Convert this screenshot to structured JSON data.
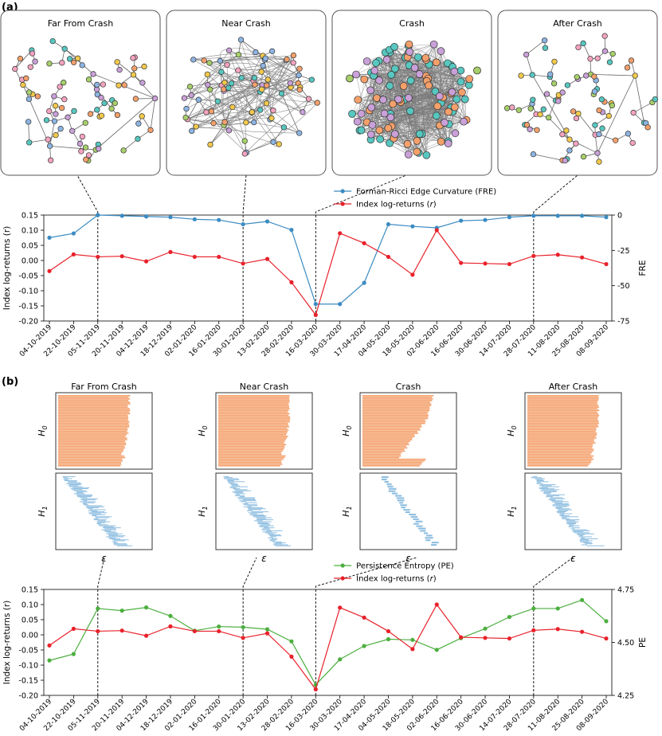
{
  "panel_a": {
    "label": "(a)",
    "snapshots": [
      "Far From Crash",
      "Near Crash",
      "Crash",
      "After Crash"
    ]
  },
  "panel_b": {
    "label": "(b)",
    "snapshots": [
      "Far From Crash",
      "Near Crash",
      "Crash",
      "After Crash"
    ],
    "h0_label": "H0",
    "h1_label": "H1",
    "eps_label": "ε"
  },
  "colors": {
    "fre": "#3b8bc2",
    "returns": "#e8212a",
    "pe": "#4caf3f",
    "barcode_h0": "#f4a06b",
    "barcode_h1": "#8dbde0",
    "edge": "#888888"
  },
  "network_node_colors": [
    "#57c7c0",
    "#f4a06b",
    "#c9a0d8",
    "#a7cf6a",
    "#f2c94c",
    "#8db4e2",
    "#f4a3c1"
  ],
  "chart_data": [
    {
      "type": "line",
      "dual_axis": true,
      "x": [
        "04-10-2019",
        "22-10-2019",
        "05-11-2019",
        "20-11-2019",
        "04-12-2019",
        "18-12-2019",
        "02-01-2020",
        "16-01-2020",
        "30-01-2020",
        "13-02-2020",
        "28-02-2020",
        "16-03-2020",
        "30-03-2020",
        "17-04-2020",
        "04-05-2020",
        "18-05-2020",
        "02-06-2020",
        "16-06-2020",
        "30-06-2020",
        "14-07-2020",
        "28-07-2020",
        "11-08-2020",
        "25-08-2020",
        "08-09-2020"
      ],
      "series": [
        {
          "name": "Forman-Ricci Edge Curvature (FRE)",
          "axis": "right",
          "values": [
            -16,
            -13,
            0,
            -0.5,
            -1,
            -1.5,
            -3,
            -3.5,
            -6.5,
            -4.5,
            -10.5,
            -63,
            -63,
            -48,
            -6.5,
            -8,
            -9,
            -4,
            -3.5,
            -1.5,
            -0.5,
            -0.5,
            -0.5,
            -1.5
          ]
        },
        {
          "name": "Index log-returns (r)",
          "axis": "left",
          "values": [
            -0.035,
            0.02,
            0.012,
            0.014,
            -0.003,
            0.028,
            0.012,
            0.012,
            -0.01,
            0.005,
            -0.072,
            -0.18,
            0.09,
            0.057,
            0.012,
            -0.047,
            0.1,
            -0.008,
            -0.01,
            -0.012,
            0.015,
            0.019,
            0.01,
            -0.012
          ]
        }
      ],
      "ylabel_left": "Index log-returns (r)",
      "ylabel_right": "FRE",
      "ylim_left": [
        -0.2,
        0.15
      ],
      "ylim_right": [
        -75,
        0
      ],
      "yticks_left": [
        "0.15",
        "0.10",
        "0.05",
        "0.00",
        "-0.05",
        "-0.10",
        "-0.15",
        "-0.20"
      ],
      "yticks_right": [
        "0",
        "-25",
        "-50",
        "-75"
      ],
      "legend": "top-center",
      "markers": [
        {
          "label": "Far From Crash",
          "x": "05-11-2019"
        },
        {
          "label": "Near Crash",
          "x": "30-01-2020"
        },
        {
          "label": "Crash",
          "x": "16-03-2020"
        },
        {
          "label": "After Crash",
          "x": "28-07-2020"
        }
      ]
    },
    {
      "type": "line",
      "dual_axis": true,
      "x": [
        "04-10-2019",
        "22-10-2019",
        "05-11-2019",
        "20-11-2019",
        "04-12-2019",
        "18-12-2019",
        "02-01-2020",
        "16-01-2020",
        "30-01-2020",
        "13-02-2020",
        "28-02-2020",
        "16-03-2020",
        "30-03-2020",
        "17-04-2020",
        "04-05-2020",
        "18-05-2020",
        "02-06-2020",
        "16-06-2020",
        "30-06-2020",
        "14-07-2020",
        "28-07-2020",
        "11-08-2020",
        "25-08-2020",
        "08-09-2020"
      ],
      "series": [
        {
          "name": "Persistence Entropy (PE)",
          "axis": "right",
          "values": [
            4.415,
            4.445,
            4.66,
            4.65,
            4.665,
            4.625,
            4.555,
            4.575,
            4.572,
            4.562,
            4.505,
            4.3,
            4.42,
            4.483,
            4.515,
            4.512,
            4.465,
            4.52,
            4.565,
            4.62,
            4.66,
            4.66,
            4.7,
            4.6
          ]
        },
        {
          "name": "Index log-returns (r)",
          "axis": "left",
          "values": [
            -0.035,
            0.02,
            0.012,
            0.014,
            -0.003,
            0.028,
            0.012,
            0.012,
            -0.01,
            0.005,
            -0.072,
            -0.18,
            0.09,
            0.057,
            0.012,
            -0.047,
            0.1,
            -0.008,
            -0.01,
            -0.012,
            0.015,
            0.019,
            0.01,
            -0.012
          ]
        }
      ],
      "ylabel_left": "Index log-returns (r)",
      "ylabel_right": "PE",
      "ylim_left": [
        -0.2,
        0.15
      ],
      "ylim_right": [
        4.25,
        4.75
      ],
      "yticks_left": [
        "0.15",
        "0.10",
        "0.05",
        "0.00",
        "-0.05",
        "-0.10",
        "-0.15",
        "-0.20"
      ],
      "yticks_right": [
        "4.75",
        "4.50",
        "4.25"
      ],
      "legend": "top-center",
      "markers": [
        {
          "label": "Far From Crash",
          "x": "05-11-2019"
        },
        {
          "label": "Near Crash",
          "x": "30-01-2020"
        },
        {
          "label": "Crash",
          "x": "16-03-2020"
        },
        {
          "label": "After Crash",
          "x": "28-07-2020"
        }
      ]
    }
  ]
}
